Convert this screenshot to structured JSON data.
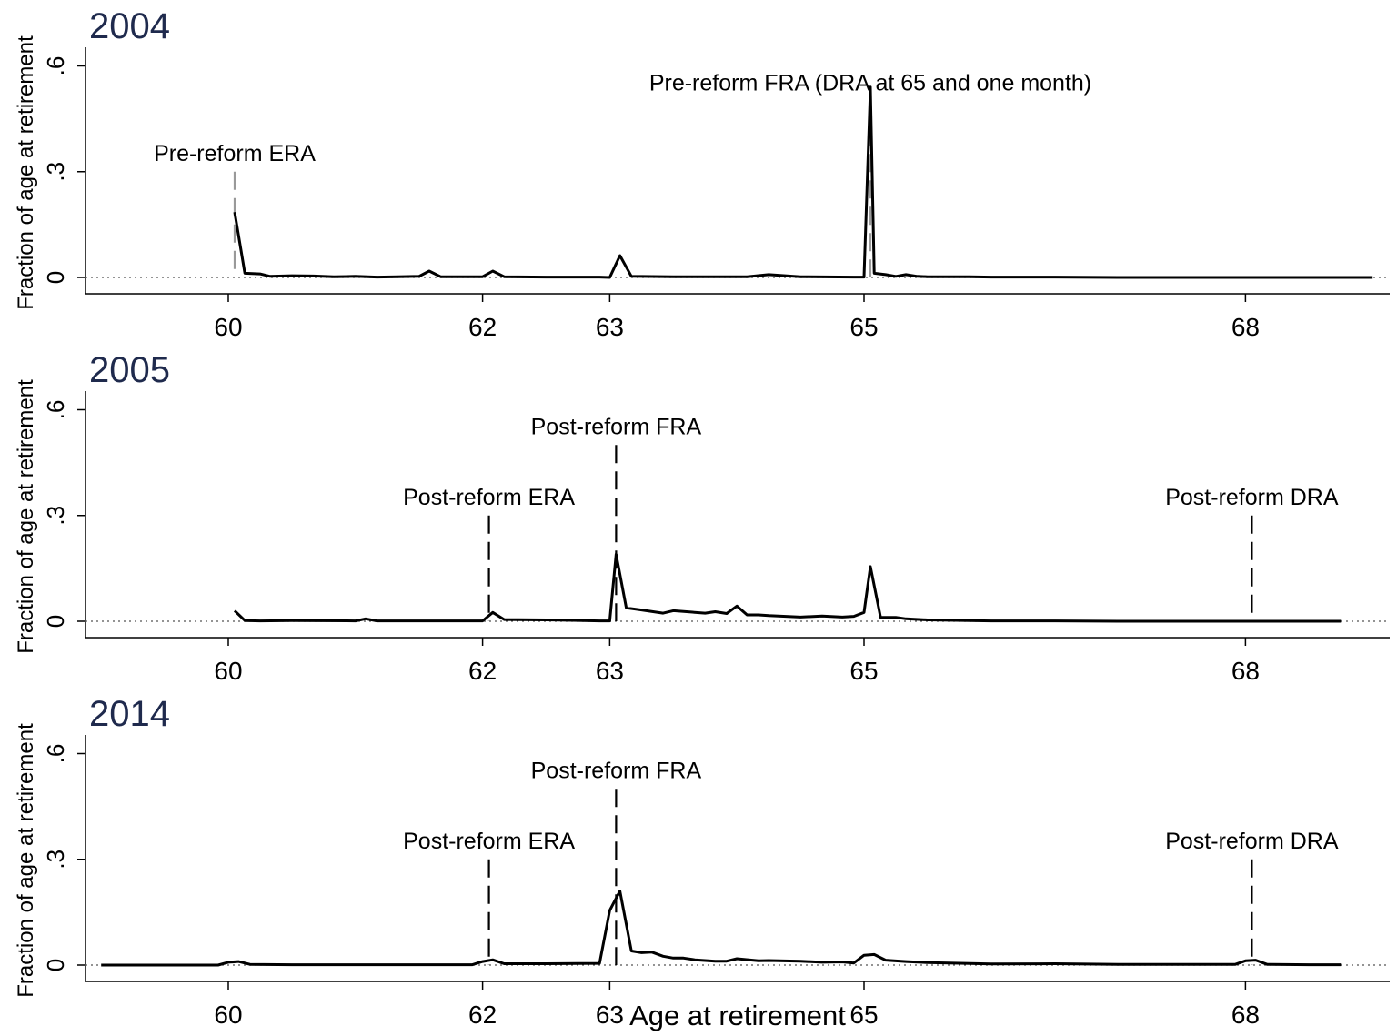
{
  "chart_data": {
    "type": "line",
    "xlabel": "Age at retirement",
    "x_ticks": [
      60,
      62,
      63,
      65,
      68
    ],
    "y_ticks": [
      0,
      0.3,
      0.6
    ],
    "y_tick_labels": [
      "0",
      ".3",
      ".6"
    ],
    "xlim": [
      58.8,
      69.1
    ],
    "ylim": [
      -0.05,
      0.66
    ],
    "panels": [
      {
        "title": "2004",
        "ylabel": "Fraction of age at retirement",
        "grid": false,
        "reference_line_y": 0,
        "annotations": [
          {
            "text": "Pre-reform ERA",
            "x": 60.05,
            "line_color": "#999999",
            "line_top": 0.3
          },
          {
            "text": "Pre-reform FRA (DRA at 65 and one month)",
            "x": 65.05,
            "line_color": "#999999",
            "line_top": 0.5
          }
        ],
        "series": [
          {
            "x": [
              60.05,
              60.13,
              60.25,
              60.33,
              60.5,
              60.67,
              60.83,
              61.0,
              61.17,
              61.33,
              61.5,
              61.58,
              61.67,
              61.83,
              62.0,
              62.08,
              62.17,
              62.5,
              62.92,
              63.0,
              63.08,
              63.17,
              63.5,
              63.92,
              64.0,
              64.08,
              64.25,
              64.5,
              64.92,
              65.0,
              65.05,
              65.08,
              65.17,
              65.25,
              65.33,
              65.42,
              65.5,
              65.83,
              66.0,
              66.5,
              67.0,
              67.5,
              68.0,
              68.5,
              69.0
            ],
            "y": [
              0.185,
              0.012,
              0.01,
              0.003,
              0.005,
              0.004,
              0.002,
              0.003,
              0.001,
              0.002,
              0.003,
              0.018,
              0.002,
              0.002,
              0.002,
              0.018,
              0.002,
              0.001,
              0.001,
              0.0,
              0.062,
              0.003,
              0.002,
              0.002,
              0.002,
              0.002,
              0.008,
              0.002,
              0.001,
              0.001,
              0.54,
              0.012,
              0.008,
              0.003,
              0.008,
              0.003,
              0.002,
              0.002,
              0.001,
              0.001,
              0.0,
              0.0,
              0.0,
              0.0,
              0.0
            ]
          }
        ]
      },
      {
        "title": "2005",
        "ylabel": "Fraction of age at retirement",
        "grid": false,
        "reference_line_y": 0,
        "annotations": [
          {
            "text": "Post-reform ERA",
            "x": 62.05,
            "line_color": "#000000",
            "line_top": 0.3
          },
          {
            "text": "Post-reform FRA",
            "x": 63.05,
            "line_color": "#000000",
            "line_top": 0.5
          },
          {
            "text": "Post-reform DRA",
            "x": 68.05,
            "line_color": "#000000",
            "line_top": 0.3
          }
        ],
        "series": [
          {
            "x": [
              60.05,
              60.13,
              60.25,
              60.5,
              61.0,
              61.08,
              61.17,
              61.5,
              62.0,
              62.08,
              62.17,
              62.5,
              62.92,
              63.0,
              63.05,
              63.13,
              63.25,
              63.42,
              63.5,
              63.75,
              63.83,
              63.92,
              64.0,
              64.08,
              64.17,
              64.25,
              64.5,
              64.67,
              64.83,
              64.92,
              65.0,
              65.05,
              65.13,
              65.25,
              65.33,
              65.5,
              65.83,
              66.0,
              66.5,
              67.0,
              67.5,
              68.0,
              68.5,
              68.75
            ],
            "y": [
              0.03,
              0.002,
              0.001,
              0.002,
              0.001,
              0.007,
              0.001,
              0.001,
              0.001,
              0.025,
              0.005,
              0.004,
              0.001,
              0.001,
              0.19,
              0.038,
              0.032,
              0.023,
              0.03,
              0.023,
              0.027,
              0.022,
              0.043,
              0.018,
              0.018,
              0.016,
              0.012,
              0.015,
              0.012,
              0.014,
              0.025,
              0.155,
              0.011,
              0.011,
              0.007,
              0.004,
              0.002,
              0.001,
              0.001,
              0.0,
              0.0,
              0.0,
              0.0,
              0.0
            ]
          }
        ]
      },
      {
        "title": "2014",
        "ylabel": "Fraction of age at retirement",
        "grid": false,
        "reference_line_y": 0,
        "annotations": [
          {
            "text": "Post-reform ERA",
            "x": 62.05,
            "line_color": "#000000",
            "line_top": 0.3
          },
          {
            "text": "Post-reform FRA",
            "x": 63.05,
            "line_color": "#000000",
            "line_top": 0.5
          },
          {
            "text": "Post-reform DRA",
            "x": 68.05,
            "line_color": "#000000",
            "line_top": 0.3
          }
        ],
        "series": [
          {
            "x": [
              59.0,
              59.5,
              59.92,
              60.0,
              60.08,
              60.17,
              60.5,
              61.0,
              61.5,
              61.92,
              62.0,
              62.08,
              62.17,
              62.5,
              62.92,
              63.0,
              63.08,
              63.17,
              63.25,
              63.33,
              63.42,
              63.5,
              63.58,
              63.67,
              63.83,
              63.92,
              64.0,
              64.17,
              64.25,
              64.5,
              64.67,
              64.83,
              64.92,
              65.0,
              65.08,
              65.17,
              65.33,
              65.5,
              66.0,
              66.5,
              67.0,
              67.5,
              67.92,
              68.0,
              68.08,
              68.17,
              68.5,
              68.75
            ],
            "y": [
              0.0,
              0.0,
              0.0,
              0.008,
              0.01,
              0.002,
              0.001,
              0.001,
              0.001,
              0.001,
              0.01,
              0.015,
              0.004,
              0.004,
              0.005,
              0.155,
              0.21,
              0.04,
              0.035,
              0.037,
              0.025,
              0.02,
              0.02,
              0.015,
              0.011,
              0.011,
              0.018,
              0.012,
              0.013,
              0.011,
              0.008,
              0.009,
              0.006,
              0.028,
              0.03,
              0.014,
              0.01,
              0.007,
              0.003,
              0.004,
              0.002,
              0.002,
              0.002,
              0.012,
              0.014,
              0.002,
              0.001,
              0.001
            ]
          }
        ]
      }
    ]
  }
}
